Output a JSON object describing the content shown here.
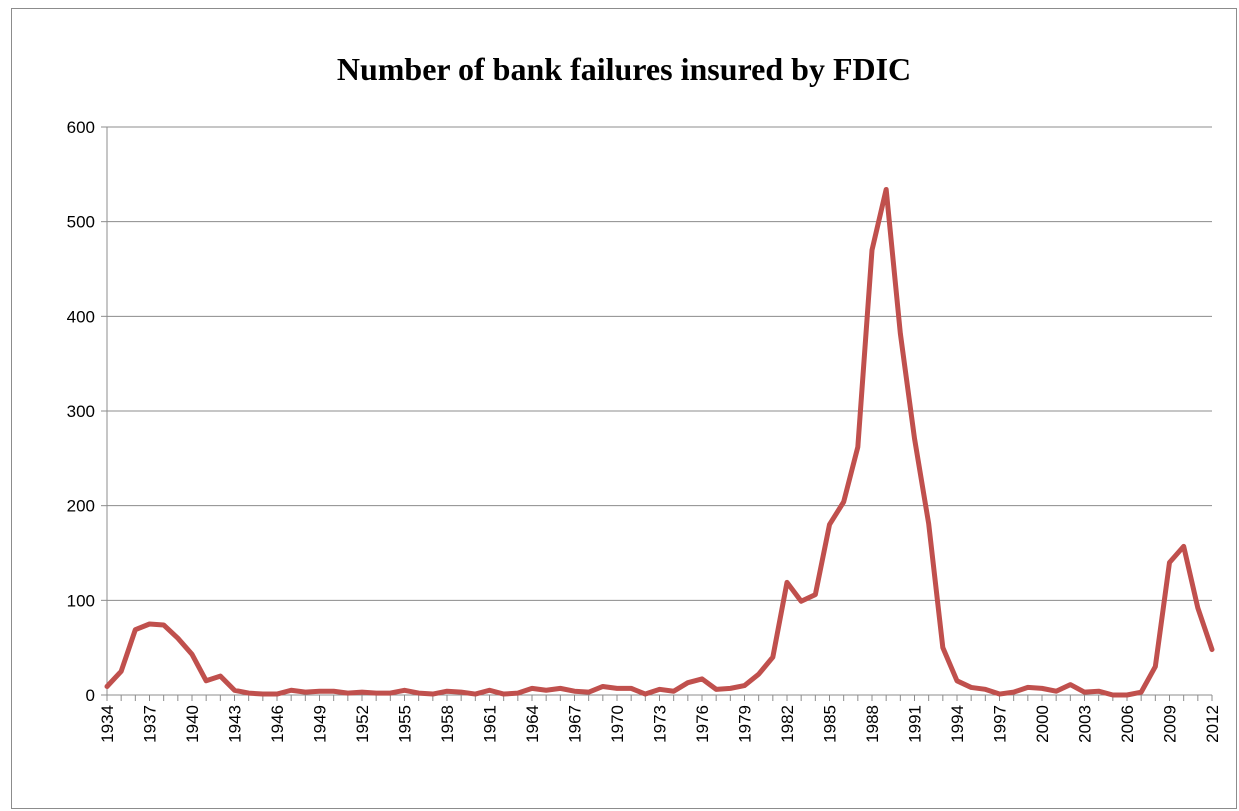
{
  "chart_data": {
    "type": "line",
    "title": "Number of bank failures insured by FDIC",
    "xlabel": "",
    "ylabel": "",
    "ylim": [
      0,
      600
    ],
    "yticks": [
      0,
      100,
      200,
      300,
      400,
      500,
      600
    ],
    "xtick_labels": [
      "1934",
      "1937",
      "1940",
      "1943",
      "1946",
      "1949",
      "1952",
      "1955",
      "1958",
      "1961",
      "1964",
      "1967",
      "1970",
      "1973",
      "1976",
      "1979",
      "1982",
      "1985",
      "1988",
      "1991",
      "1994",
      "1997",
      "2000",
      "2003",
      "2006",
      "2009",
      "2012"
    ],
    "grid": true,
    "legend": "none",
    "line_color": "#c0504d",
    "x": [
      1934,
      1935,
      1936,
      1937,
      1938,
      1939,
      1940,
      1941,
      1942,
      1943,
      1944,
      1945,
      1946,
      1947,
      1948,
      1949,
      1950,
      1951,
      1952,
      1953,
      1954,
      1955,
      1956,
      1957,
      1958,
      1959,
      1960,
      1961,
      1962,
      1963,
      1964,
      1965,
      1966,
      1967,
      1968,
      1969,
      1970,
      1971,
      1972,
      1973,
      1974,
      1975,
      1976,
      1977,
      1978,
      1979,
      1980,
      1981,
      1982,
      1983,
      1984,
      1985,
      1986,
      1987,
      1988,
      1989,
      1990,
      1991,
      1992,
      1993,
      1994,
      1995,
      1996,
      1997,
      1998,
      1999,
      2000,
      2001,
      2002,
      2003,
      2004,
      2005,
      2006,
      2007,
      2008,
      2009,
      2010,
      2011,
      2012
    ],
    "values": [
      9,
      25,
      69,
      75,
      74,
      60,
      43,
      15,
      20,
      5,
      2,
      1,
      1,
      5,
      3,
      4,
      4,
      2,
      3,
      2,
      2,
      5,
      2,
      1,
      4,
      3,
      1,
      5,
      1,
      2,
      7,
      5,
      7,
      4,
      3,
      9,
      7,
      7,
      1,
      6,
      4,
      13,
      17,
      6,
      7,
      10,
      22,
      40,
      119,
      99,
      106,
      180,
      204,
      262,
      470,
      534,
      382,
      271,
      181,
      50,
      15,
      8,
      6,
      1,
      3,
      8,
      7,
      4,
      11,
      3,
      4,
      0,
      0,
      3,
      30,
      140,
      157,
      92,
      48
    ]
  }
}
